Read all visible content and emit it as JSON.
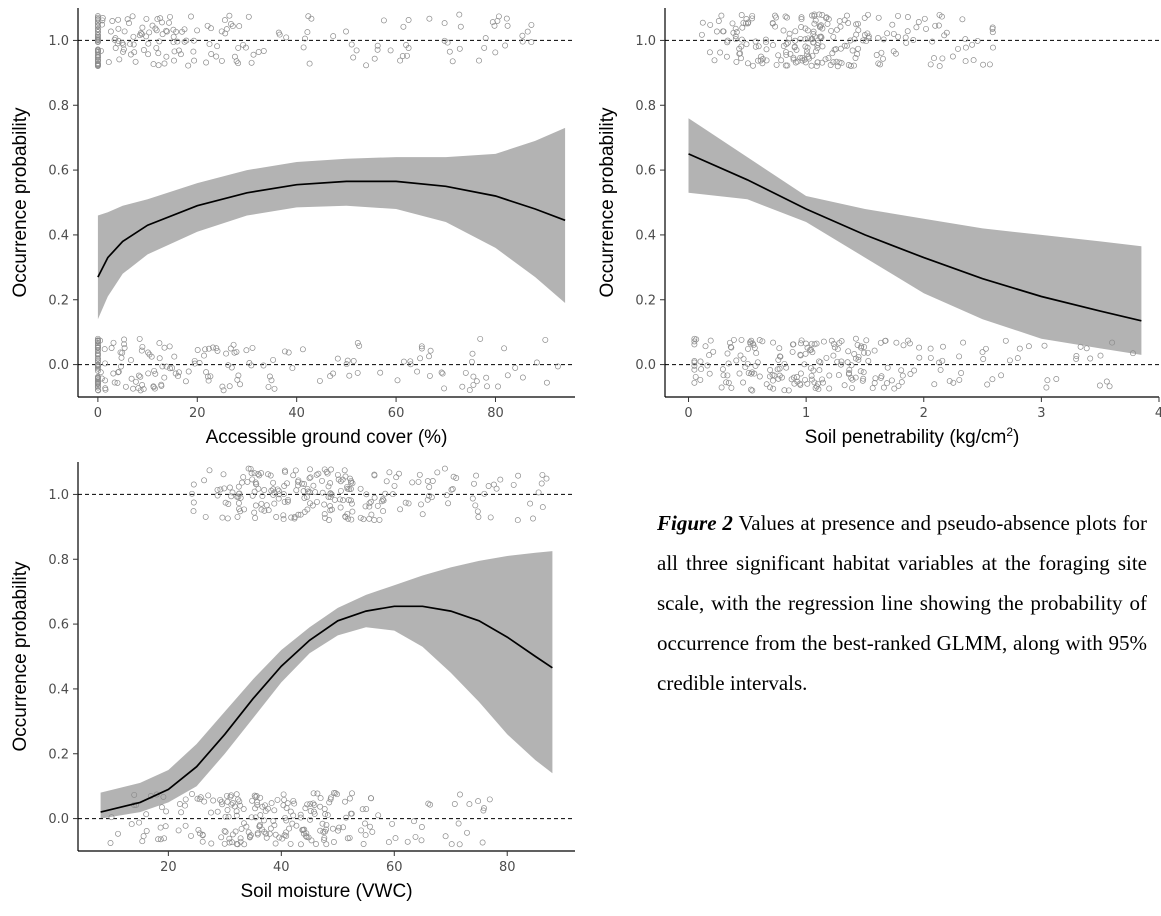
{
  "chart_data": [
    {
      "type": "scatter",
      "xlabel": "Accessible ground cover (%)",
      "ylabel": "Occurrence probability",
      "xlim": [
        -4,
        96
      ],
      "ylim": [
        -0.1,
        1.1
      ],
      "x_ticks": [
        0,
        20,
        40,
        60,
        80
      ],
      "y_ticks": [
        0.0,
        0.2,
        0.4,
        0.6,
        0.8,
        1.0
      ],
      "reference_lines": [
        0.0,
        1.0
      ],
      "grid": false,
      "fit_curve": {
        "x": [
          0,
          2,
          5,
          10,
          20,
          30,
          40,
          50,
          60,
          70,
          80,
          88,
          94
        ],
        "y": [
          0.27,
          0.33,
          0.38,
          0.43,
          0.49,
          0.53,
          0.555,
          0.565,
          0.565,
          0.55,
          0.52,
          0.48,
          0.445
        ],
        "lower": [
          0.14,
          0.21,
          0.28,
          0.34,
          0.41,
          0.46,
          0.485,
          0.49,
          0.48,
          0.44,
          0.36,
          0.27,
          0.19
        ],
        "upper": [
          0.46,
          0.47,
          0.49,
          0.51,
          0.56,
          0.6,
          0.625,
          0.635,
          0.64,
          0.64,
          0.65,
          0.69,
          0.73
        ]
      },
      "points": {
        "present": {
          "x_range": [
            0,
            88
          ],
          "cluster_center": 5,
          "count": 200,
          "y": 1,
          "jitter": 0.08
        },
        "absent": {
          "x_range": [
            0,
            93
          ],
          "cluster_center": 5,
          "count": 200,
          "y": 0,
          "jitter": 0.08
        }
      }
    },
    {
      "type": "scatter",
      "xlabel": "Soil penetrability (kg/cm",
      "xlabel_superscript": "2",
      "xlabel_suffix": ")",
      "ylabel": "Occurrence probability",
      "xlim": [
        -0.2,
        4.0
      ],
      "ylim": [
        -0.1,
        1.1
      ],
      "x_ticks": [
        0,
        1,
        2,
        3,
        4
      ],
      "y_ticks": [
        0.0,
        0.2,
        0.4,
        0.6,
        0.8,
        1.0
      ],
      "reference_lines": [
        0.0,
        1.0
      ],
      "grid": false,
      "fit_curve": {
        "x": [
          0,
          0.5,
          1.0,
          1.5,
          2.0,
          2.5,
          3.0,
          3.5,
          3.85
        ],
        "y": [
          0.65,
          0.57,
          0.48,
          0.4,
          0.33,
          0.265,
          0.21,
          0.165,
          0.135
        ],
        "lower": [
          0.53,
          0.51,
          0.44,
          0.33,
          0.22,
          0.14,
          0.08,
          0.05,
          0.03
        ],
        "upper": [
          0.76,
          0.64,
          0.52,
          0.48,
          0.45,
          0.42,
          0.4,
          0.38,
          0.365
        ]
      },
      "points": {
        "present": {
          "x_range": [
            0.1,
            2.7
          ],
          "cluster_center": 0.9,
          "count": 230,
          "y": 1,
          "jitter": 0.08
        },
        "absent": {
          "x_range": [
            0.05,
            3.8
          ],
          "cluster_center": 1.0,
          "count": 230,
          "y": 0,
          "jitter": 0.08
        }
      }
    },
    {
      "type": "scatter",
      "xlabel": "Soil moisture (VWC)",
      "ylabel": "Occurrence probability",
      "xlim": [
        4,
        92
      ],
      "ylim": [
        -0.1,
        1.1
      ],
      "x_ticks": [
        20,
        40,
        60,
        80
      ],
      "y_ticks": [
        0.0,
        0.2,
        0.4,
        0.6,
        0.8,
        1.0
      ],
      "reference_lines": [
        0.0,
        1.0
      ],
      "grid": false,
      "fit_curve": {
        "x": [
          8,
          15,
          20,
          25,
          30,
          35,
          40,
          45,
          50,
          55,
          60,
          65,
          70,
          75,
          80,
          85,
          88
        ],
        "y": [
          0.02,
          0.05,
          0.09,
          0.16,
          0.26,
          0.37,
          0.47,
          0.55,
          0.61,
          0.64,
          0.655,
          0.655,
          0.64,
          0.61,
          0.56,
          0.5,
          0.465
        ],
        "lower": [
          0.0,
          0.02,
          0.05,
          0.1,
          0.2,
          0.31,
          0.42,
          0.51,
          0.565,
          0.59,
          0.58,
          0.53,
          0.45,
          0.36,
          0.26,
          0.18,
          0.14
        ],
        "upper": [
          0.08,
          0.11,
          0.15,
          0.23,
          0.33,
          0.43,
          0.52,
          0.59,
          0.65,
          0.69,
          0.72,
          0.75,
          0.775,
          0.795,
          0.81,
          0.82,
          0.825
        ]
      },
      "points": {
        "present": {
          "x_range": [
            24,
            87
          ],
          "cluster_center": 45,
          "count": 230,
          "y": 1,
          "jitter": 0.08
        },
        "absent": {
          "x_range": [
            8,
            77
          ],
          "cluster_center": 40,
          "count": 230,
          "y": 0,
          "jitter": 0.08
        }
      }
    }
  ],
  "caption": {
    "label": "Figure 2",
    "text": " Values at presence and pseudo-absence plots for all three significant habitat variables at the foraging site scale, with the regression line showing the probability of occurrence from the best-ranked GLMM, along with 95% credible intervals."
  },
  "colors": {
    "band": "#b3b3b3",
    "line": "#000000",
    "points": "#8c8c8c",
    "ticks": "#4d4d4d"
  }
}
